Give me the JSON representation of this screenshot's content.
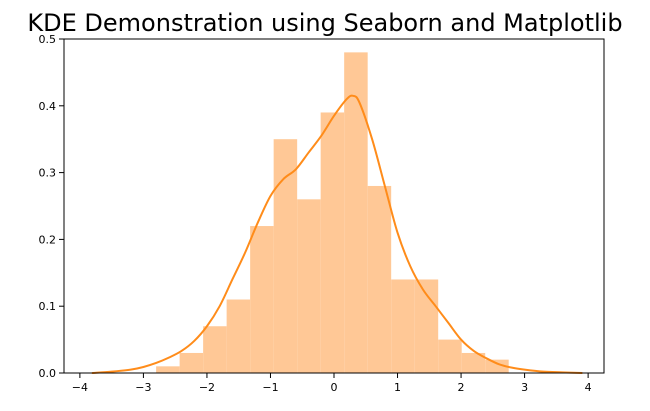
{
  "chart_data": {
    "type": "bar",
    "title": "KDE Demonstration using Seaborn and Matplotlib",
    "xlabel": "",
    "ylabel": "",
    "xlim": [
      -4.25,
      4.25
    ],
    "ylim": [
      0,
      0.5
    ],
    "x_ticks": [
      -4,
      -3,
      -2,
      -1,
      0,
      1,
      2,
      3,
      4
    ],
    "y_ticks": [
      0.0,
      0.1,
      0.2,
      0.3,
      0.4,
      0.5
    ],
    "x_tick_labels": [
      "−4",
      "−3",
      "−2",
      "−1",
      "0",
      "1",
      "2",
      "3",
      "4"
    ],
    "y_tick_labels": [
      "0.0",
      "0.1",
      "0.2",
      "0.3",
      "0.4",
      "0.5"
    ],
    "grid": false,
    "legend": "none",
    "histogram": {
      "bin_edges": [
        -2.8,
        -2.43,
        -2.06,
        -1.69,
        -1.32,
        -0.95,
        -0.58,
        -0.21,
        0.16,
        0.53,
        0.9,
        1.27,
        1.64,
        2.01,
        2.38,
        2.75,
        3.12
      ],
      "values": [
        0.01,
        0.03,
        0.07,
        0.11,
        0.22,
        0.35,
        0.26,
        0.39,
        0.48,
        0.28,
        0.14,
        0.14,
        0.05,
        0.03,
        0.02,
        0.0
      ],
      "color": "#ffc896"
    },
    "kde": {
      "x": [
        -3.8,
        -3.5,
        -3.2,
        -3.0,
        -2.8,
        -2.6,
        -2.4,
        -2.2,
        -2.0,
        -1.8,
        -1.6,
        -1.4,
        -1.2,
        -1.0,
        -0.8,
        -0.6,
        -0.4,
        -0.2,
        0.0,
        0.2,
        0.3,
        0.4,
        0.6,
        0.8,
        1.0,
        1.2,
        1.4,
        1.6,
        1.8,
        2.0,
        2.2,
        2.4,
        2.6,
        2.8,
        3.0,
        3.3,
        3.6,
        3.9
      ],
      "y": [
        0.0,
        0.002,
        0.005,
        0.009,
        0.015,
        0.023,
        0.033,
        0.048,
        0.07,
        0.1,
        0.14,
        0.18,
        0.225,
        0.265,
        0.29,
        0.305,
        0.33,
        0.355,
        0.385,
        0.41,
        0.415,
        0.405,
        0.35,
        0.28,
        0.21,
        0.16,
        0.125,
        0.1,
        0.075,
        0.05,
        0.033,
        0.022,
        0.013,
        0.008,
        0.005,
        0.002,
        0.001,
        0.0
      ],
      "color": "#ff8c1a"
    }
  }
}
